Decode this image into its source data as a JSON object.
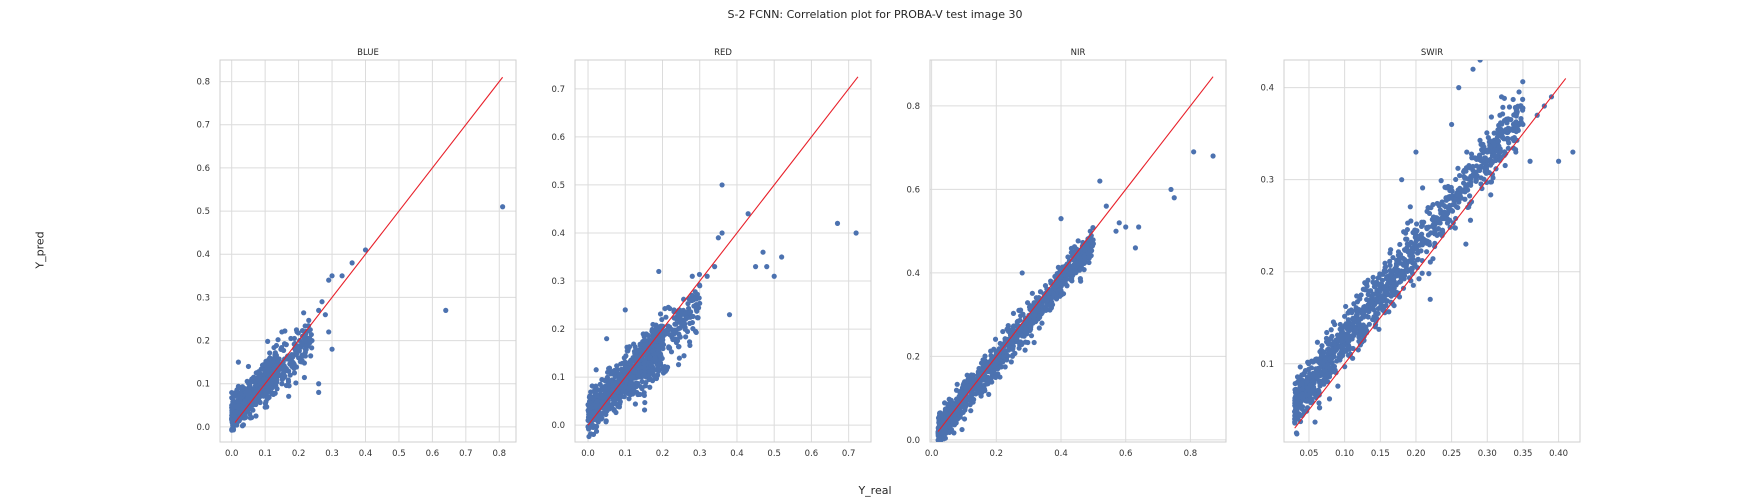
{
  "figure": {
    "title": "S-2 FCNN: Correlation plot for PROBA-V test image 30",
    "xlabel": "Y_real",
    "ylabel": "Y_pred"
  },
  "colors": {
    "points": "#4c72b0",
    "identity_line": "#e8202a",
    "grid": "#dcdcdc"
  },
  "chart_data": [
    {
      "type": "scatter",
      "title": "BLUE",
      "xlim": [
        -0.035,
        0.85
      ],
      "ylim": [
        -0.035,
        0.85
      ],
      "xticks": [
        0.0,
        0.1,
        0.2,
        0.3,
        0.4,
        0.5,
        0.6,
        0.7,
        0.8
      ],
      "yticks": [
        0.0,
        0.1,
        0.2,
        0.3,
        0.4,
        0.5,
        0.6,
        0.7,
        0.8
      ],
      "xtick_labels": [
        "0.0",
        "0.1",
        "0.2",
        "0.3",
        "0.4",
        "0.5",
        "0.6",
        "0.7",
        "0.8"
      ],
      "ytick_labels": [
        "0.0",
        "0.1",
        "0.2",
        "0.3",
        "0.4",
        "0.5",
        "0.6",
        "0.7",
        "0.8"
      ],
      "identity_line": [
        0.01,
        0.81
      ],
      "points": [
        [
          0.01,
          0.02
        ],
        [
          0.02,
          0.05
        ],
        [
          0.03,
          0.04
        ],
        [
          0.04,
          0.06
        ],
        [
          0.05,
          0.07
        ],
        [
          0.06,
          0.05
        ],
        [
          0.07,
          0.08
        ],
        [
          0.08,
          0.07
        ],
        [
          0.09,
          0.09
        ],
        [
          0.1,
          0.08
        ],
        [
          0.11,
          0.1
        ],
        [
          0.12,
          0.09
        ],
        [
          0.13,
          0.11
        ],
        [
          0.14,
          0.12
        ],
        [
          0.15,
          0.1
        ],
        [
          0.16,
          0.13
        ],
        [
          0.18,
          0.14
        ],
        [
          0.2,
          0.16
        ],
        [
          0.22,
          0.18
        ],
        [
          0.24,
          0.2
        ],
        [
          0.26,
          0.27
        ],
        [
          0.27,
          0.29
        ],
        [
          0.29,
          0.34
        ],
        [
          0.3,
          0.35
        ],
        [
          0.26,
          0.1
        ],
        [
          0.26,
          0.08
        ],
        [
          0.29,
          0.22
        ],
        [
          0.3,
          0.18
        ],
        [
          0.33,
          0.35
        ],
        [
          0.36,
          0.38
        ],
        [
          0.4,
          0.41
        ],
        [
          0.64,
          0.27
        ],
        [
          0.81,
          0.51
        ],
        [
          0.02,
          0.15
        ],
        [
          0.05,
          0.14
        ],
        [
          0.15,
          0.22
        ],
        [
          0.28,
          0.26
        ]
      ],
      "dense_clouds": [
        {
          "x_range": [
            0.0,
            0.14
          ],
          "center_slope": 0.8,
          "center_intercept": 0.025,
          "spread": 0.02,
          "count": 520
        },
        {
          "x_range": [
            0.1,
            0.24
          ],
          "center_slope": 0.8,
          "center_intercept": 0.02,
          "spread": 0.03,
          "count": 160
        }
      ]
    },
    {
      "type": "scatter",
      "title": "RED",
      "xlim": [
        -0.035,
        0.76
      ],
      "ylim": [
        -0.035,
        0.76
      ],
      "xticks": [
        0.0,
        0.1,
        0.2,
        0.3,
        0.4,
        0.5,
        0.6,
        0.7
      ],
      "yticks": [
        0.0,
        0.1,
        0.2,
        0.3,
        0.4,
        0.5,
        0.6,
        0.7
      ],
      "xtick_labels": [
        "0.0",
        "0.1",
        "0.2",
        "0.3",
        "0.4",
        "0.5",
        "0.6",
        "0.7"
      ],
      "ytick_labels": [
        "0.0",
        "0.1",
        "0.2",
        "0.3",
        "0.4",
        "0.5",
        "0.6",
        "0.7"
      ],
      "identity_line": [
        0.0,
        0.725
      ],
      "points": [
        [
          0.02,
          0.02
        ],
        [
          0.05,
          0.04
        ],
        [
          0.08,
          0.07
        ],
        [
          0.1,
          0.08
        ],
        [
          0.12,
          0.1
        ],
        [
          0.15,
          0.12
        ],
        [
          0.18,
          0.14
        ],
        [
          0.2,
          0.17
        ],
        [
          0.22,
          0.2
        ],
        [
          0.25,
          0.22
        ],
        [
          0.28,
          0.26
        ],
        [
          0.3,
          0.29
        ],
        [
          0.32,
          0.31
        ],
        [
          0.34,
          0.33
        ],
        [
          0.36,
          0.4
        ],
        [
          0.35,
          0.39
        ],
        [
          0.36,
          0.5
        ],
        [
          0.38,
          0.23
        ],
        [
          0.43,
          0.44
        ],
        [
          0.45,
          0.33
        ],
        [
          0.47,
          0.36
        ],
        [
          0.48,
          0.33
        ],
        [
          0.5,
          0.31
        ],
        [
          0.52,
          0.35
        ],
        [
          0.67,
          0.42
        ],
        [
          0.72,
          0.4
        ],
        [
          0.19,
          0.32
        ],
        [
          0.1,
          0.24
        ],
        [
          0.05,
          0.18
        ],
        [
          0.28,
          0.31
        ]
      ],
      "dense_clouds": [
        {
          "x_range": [
            0.0,
            0.2
          ],
          "center_slope": 0.75,
          "center_intercept": 0.02,
          "spread": 0.025,
          "count": 600
        },
        {
          "x_range": [
            0.15,
            0.3
          ],
          "center_slope": 0.8,
          "center_intercept": 0.01,
          "spread": 0.03,
          "count": 220
        }
      ]
    },
    {
      "type": "scatter",
      "title": "NIR",
      "xlim": [
        -0.005,
        0.91
      ],
      "ylim": [
        -0.005,
        0.91
      ],
      "xticks": [
        0.0,
        0.2,
        0.4,
        0.6,
        0.8
      ],
      "yticks": [
        0.0,
        0.2,
        0.4,
        0.6,
        0.8
      ],
      "xtick_labels": [
        "0.0",
        "0.2",
        "0.4",
        "0.6",
        "0.8"
      ],
      "ytick_labels": [
        "0.0",
        "0.2",
        "0.4",
        "0.6",
        "0.8"
      ],
      "identity_line": [
        0.02,
        0.87
      ],
      "points": [
        [
          0.03,
          0.03
        ],
        [
          0.05,
          0.05
        ],
        [
          0.1,
          0.09
        ],
        [
          0.15,
          0.14
        ],
        [
          0.2,
          0.19
        ],
        [
          0.25,
          0.24
        ],
        [
          0.3,
          0.29
        ],
        [
          0.35,
          0.34
        ],
        [
          0.4,
          0.39
        ],
        [
          0.45,
          0.44
        ],
        [
          0.48,
          0.46
        ],
        [
          0.5,
          0.47
        ],
        [
          0.52,
          0.62
        ],
        [
          0.54,
          0.56
        ],
        [
          0.58,
          0.52
        ],
        [
          0.57,
          0.5
        ],
        [
          0.6,
          0.51
        ],
        [
          0.63,
          0.46
        ],
        [
          0.64,
          0.51
        ],
        [
          0.74,
          0.6
        ],
        [
          0.75,
          0.58
        ],
        [
          0.81,
          0.69
        ],
        [
          0.87,
          0.68
        ],
        [
          0.4,
          0.53
        ],
        [
          0.28,
          0.4
        ]
      ],
      "dense_clouds": [
        {
          "x_range": [
            0.02,
            0.5
          ],
          "center_slope": 0.93,
          "center_intercept": 0.005,
          "spread": 0.02,
          "count": 1000
        }
      ]
    },
    {
      "type": "scatter",
      "title": "SWIR",
      "xlim": [
        0.015,
        0.43
      ],
      "ylim": [
        0.015,
        0.43
      ],
      "xticks": [
        0.05,
        0.1,
        0.15,
        0.2,
        0.25,
        0.3,
        0.35,
        0.4
      ],
      "yticks": [
        0.1,
        0.2,
        0.3,
        0.4
      ],
      "xtick_labels": [
        "0.05",
        "0.10",
        "0.15",
        "0.20",
        "0.25",
        "0.30",
        "0.35",
        "0.40"
      ],
      "ytick_labels": [
        "0.1",
        "0.2",
        "0.3",
        "0.4"
      ],
      "identity_line": [
        0.03,
        0.41
      ],
      "points": [
        [
          0.03,
          0.04
        ],
        [
          0.05,
          0.06
        ],
        [
          0.1,
          0.13
        ],
        [
          0.15,
          0.18
        ],
        [
          0.2,
          0.24
        ],
        [
          0.25,
          0.28
        ],
        [
          0.28,
          0.31
        ],
        [
          0.3,
          0.33
        ],
        [
          0.33,
          0.34
        ],
        [
          0.35,
          0.36
        ],
        [
          0.37,
          0.37
        ],
        [
          0.38,
          0.38
        ],
        [
          0.39,
          0.39
        ],
        [
          0.4,
          0.32
        ],
        [
          0.42,
          0.33
        ],
        [
          0.36,
          0.32
        ],
        [
          0.3,
          0.45
        ],
        [
          0.31,
          0.44
        ],
        [
          0.29,
          0.43
        ],
        [
          0.28,
          0.42
        ],
        [
          0.26,
          0.4
        ],
        [
          0.32,
          0.39
        ],
        [
          0.2,
          0.33
        ],
        [
          0.18,
          0.3
        ],
        [
          0.22,
          0.17
        ],
        [
          0.27,
          0.23
        ],
        [
          0.25,
          0.36
        ],
        [
          0.34,
          0.33
        ]
      ],
      "dense_clouds": [
        {
          "x_range": [
            0.03,
            0.35
          ],
          "center_slope": 1.0,
          "center_intercept": 0.025,
          "spread": 0.015,
          "count": 1100
        }
      ]
    }
  ]
}
